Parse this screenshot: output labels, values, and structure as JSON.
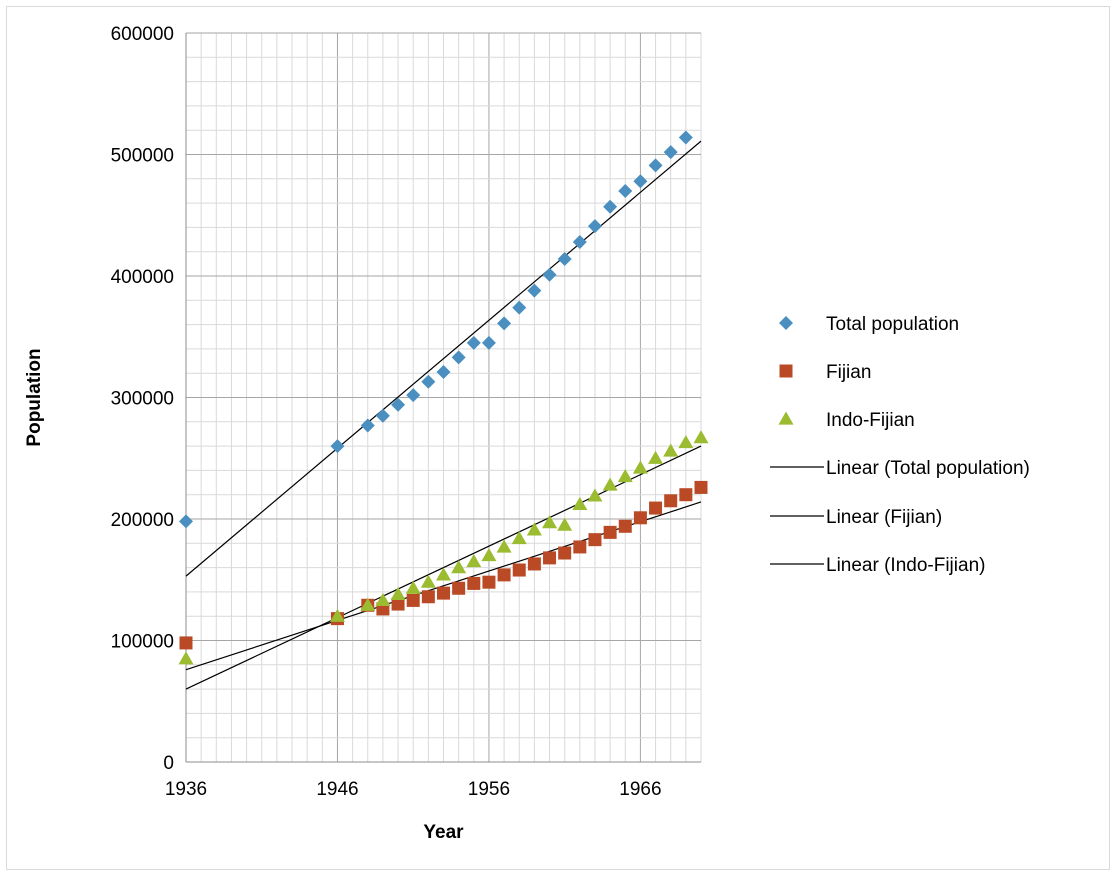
{
  "chart_data": {
    "type": "scatter",
    "title": "",
    "xlabel": "Year",
    "ylabel": "Population",
    "xlim": [
      1936,
      1970
    ],
    "ylim": [
      0,
      600000
    ],
    "x_ticks": [
      "1936",
      "1946",
      "1956",
      "1966"
    ],
    "y_ticks": [
      "0",
      "100000",
      "200000",
      "300000",
      "400000",
      "500000",
      "600000"
    ],
    "grid": true,
    "legend_position": "right",
    "series": [
      {
        "name": "Total population",
        "marker": "diamond",
        "color": "#4a8fc0",
        "x": [
          1936,
          1946,
          1948,
          1949,
          1950,
          1951,
          1952,
          1953,
          1954,
          1955,
          1956,
          1957,
          1958,
          1959,
          1960,
          1961,
          1962,
          1963,
          1964,
          1965,
          1966,
          1967,
          1968,
          1969
        ],
        "y": [
          198000,
          260000,
          277000,
          285000,
          294000,
          302000,
          313000,
          321000,
          333000,
          345000,
          345000,
          361000,
          374000,
          388000,
          401000,
          414000,
          428000,
          441000,
          457000,
          470000,
          478000,
          491000,
          502000,
          514000
        ]
      },
      {
        "name": "Fijian",
        "marker": "square",
        "color": "#b94a25",
        "x": [
          1936,
          1946,
          1948,
          1949,
          1950,
          1951,
          1952,
          1953,
          1954,
          1955,
          1956,
          1957,
          1958,
          1959,
          1960,
          1961,
          1962,
          1963,
          1964,
          1965,
          1966,
          1967,
          1968,
          1969,
          1970
        ],
        "y": [
          98000,
          118000,
          129000,
          126000,
          130000,
          133000,
          136000,
          139000,
          143000,
          147000,
          148000,
          154000,
          158000,
          163000,
          168000,
          172000,
          177000,
          183000,
          189000,
          194000,
          201000,
          209000,
          215000,
          220000,
          226000
        ]
      },
      {
        "name": "Indo-Fijian",
        "marker": "triangle",
        "color": "#9bbb30",
        "x": [
          1936,
          1946,
          1948,
          1949,
          1950,
          1951,
          1952,
          1953,
          1954,
          1955,
          1956,
          1957,
          1958,
          1959,
          1960,
          1961,
          1962,
          1963,
          1964,
          1965,
          1966,
          1967,
          1968,
          1969,
          1970
        ],
        "y": [
          85000,
          120000,
          129000,
          133000,
          138000,
          143000,
          148000,
          154000,
          160000,
          165000,
          170000,
          177000,
          184000,
          191000,
          197000,
          195000,
          212000,
          219000,
          228000,
          235000,
          242000,
          250000,
          256000,
          263000,
          267000
        ]
      }
    ],
    "trendlines": [
      {
        "name": "Linear (Total population)",
        "color": "#000000",
        "x": [
          1936,
          1970
        ],
        "y": [
          153000,
          511000
        ]
      },
      {
        "name": "Linear (Fijian)",
        "color": "#000000",
        "x": [
          1936,
          1970
        ],
        "y": [
          76000,
          214000
        ]
      },
      {
        "name": "Linear (Indo-Fijian)",
        "color": "#000000",
        "x": [
          1936,
          1970
        ],
        "y": [
          60000,
          260000
        ]
      }
    ]
  }
}
